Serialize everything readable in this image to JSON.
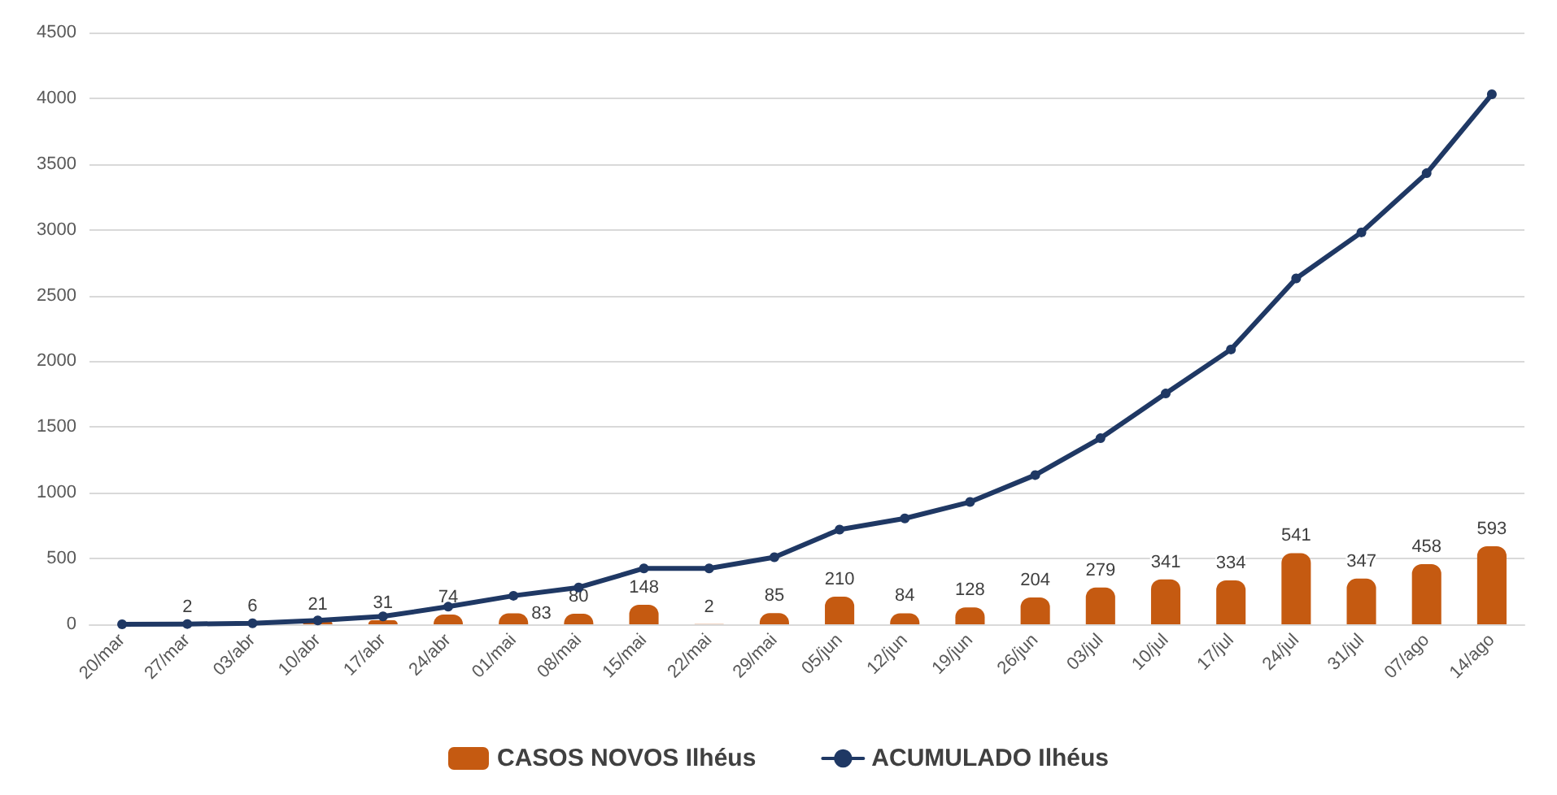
{
  "chart_data": {
    "type": "bar",
    "categories": [
      "20/mar",
      "27/mar",
      "03/abr",
      "10/abr",
      "17/abr",
      "24/abr",
      "01/mai",
      "08/mai",
      "15/mai",
      "22/mai",
      "29/mai",
      "05/jun",
      "12/jun",
      "19/jun",
      "26/jun",
      "03/jul",
      "10/jul",
      "17/jul",
      "24/jul",
      "31/jul",
      "07/ago",
      "14/ago"
    ],
    "series": [
      {
        "name": "CASOS NOVOS Ilhéus",
        "color": "#c55a11",
        "values": [
          null,
          2,
          6,
          21,
          31,
          74,
          83,
          80,
          148,
          2,
          85,
          210,
          84,
          128,
          204,
          279,
          341,
          334,
          541,
          347,
          458,
          593
        ],
        "value_labels": [
          null,
          "2",
          "6",
          "21",
          "31",
          "74",
          "83",
          "80",
          "148",
          "2",
          "85",
          "210",
          "84",
          "128",
          "204",
          "279",
          "341",
          "334",
          "541",
          "347",
          "458",
          "593"
        ]
      },
      {
        "name": "ACUMULADO Ilhéus",
        "type": "line",
        "color": "#1f3864",
        "values": [
          0,
          2,
          8,
          29,
          60,
          134,
          217,
          280,
          425,
          425,
          510,
          720,
          805,
          930,
          1135,
          1415,
          1755,
          2090,
          2630,
          2980,
          3430,
          4030
        ]
      }
    ],
    "ylim": [
      0,
      4500
    ],
    "yticks": [
      0,
      500,
      1000,
      1500,
      2000,
      2500,
      3000,
      3500,
      4000,
      4500
    ],
    "grid": "y",
    "legend": "bottom",
    "marker": "circle",
    "line_style": "solid"
  }
}
